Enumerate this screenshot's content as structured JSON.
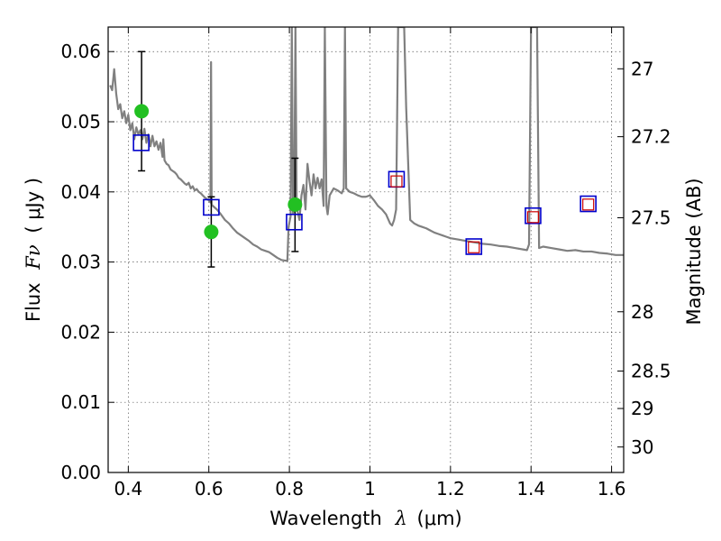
{
  "chart_data": {
    "type": "scatter",
    "xlabel_text": "Wavelength",
    "xlabel_symbol": "λ",
    "xlabel_unit": "(μm)",
    "ylabel_text": "Flux",
    "ylabel_symbol": "Fν",
    "ylabel_unit": "( μJy )",
    "y2label": "Magnitude (AB)",
    "xlim": [
      0.35,
      1.63
    ],
    "ylim": [
      0.0,
      0.0635
    ],
    "grid": true,
    "x_ticks": [
      0.4,
      0.6,
      0.8,
      1.0,
      1.2,
      1.4,
      1.6
    ],
    "x_tick_labels": [
      "0.4",
      "0.6",
      "0.8",
      "1",
      "1.2",
      "1.4",
      "1.6"
    ],
    "y_ticks": [
      0.0,
      0.01,
      0.02,
      0.03,
      0.04,
      0.05,
      0.06
    ],
    "y_tick_labels": [
      "0.00",
      "0.01",
      "0.02",
      "0.03",
      "0.04",
      "0.05",
      "0.06"
    ],
    "y2_ticks": [
      27,
      27.2,
      27.5,
      28,
      28.5,
      29,
      30
    ],
    "y2_tick_labels": [
      "27",
      "27.2",
      "27.5",
      "28",
      "28.5",
      "29",
      "30"
    ],
    "model_spectrum": {
      "color": "#808080",
      "points": [
        [
          0.355,
          0.0552
        ],
        [
          0.36,
          0.0545
        ],
        [
          0.365,
          0.0575
        ],
        [
          0.37,
          0.054
        ],
        [
          0.375,
          0.0518
        ],
        [
          0.38,
          0.0525
        ],
        [
          0.385,
          0.0505
        ],
        [
          0.39,
          0.0515
        ],
        [
          0.395,
          0.0498
        ],
        [
          0.4,
          0.051
        ],
        [
          0.405,
          0.0488
        ],
        [
          0.41,
          0.0498
        ],
        [
          0.415,
          0.0475
        ],
        [
          0.42,
          0.0492
        ],
        [
          0.425,
          0.0482
        ],
        [
          0.43,
          0.0488
        ],
        [
          0.435,
          0.0475
        ],
        [
          0.44,
          0.049
        ],
        [
          0.445,
          0.047
        ],
        [
          0.45,
          0.0482
        ],
        [
          0.455,
          0.0465
        ],
        [
          0.46,
          0.048
        ],
        [
          0.465,
          0.0465
        ],
        [
          0.47,
          0.0472
        ],
        [
          0.475,
          0.046
        ],
        [
          0.48,
          0.047
        ],
        [
          0.485,
          0.045
        ],
        [
          0.487,
          0.0475
        ],
        [
          0.49,
          0.0445
        ],
        [
          0.495,
          0.044
        ],
        [
          0.5,
          0.0438
        ],
        [
          0.505,
          0.0432
        ],
        [
          0.51,
          0.043
        ],
        [
          0.515,
          0.0428
        ],
        [
          0.52,
          0.0425
        ],
        [
          0.525,
          0.042
        ],
        [
          0.53,
          0.0418
        ],
        [
          0.535,
          0.0415
        ],
        [
          0.54,
          0.0412
        ],
        [
          0.545,
          0.041
        ],
        [
          0.55,
          0.0413
        ],
        [
          0.555,
          0.0405
        ],
        [
          0.56,
          0.0408
        ],
        [
          0.565,
          0.0402
        ],
        [
          0.57,
          0.0404
        ],
        [
          0.575,
          0.04
        ],
        [
          0.58,
          0.0398
        ],
        [
          0.585,
          0.0395
        ],
        [
          0.59,
          0.0392
        ],
        [
          0.595,
          0.039
        ],
        [
          0.6,
          0.0388
        ],
        [
          0.604,
          0.0385
        ],
        [
          0.6055,
          0.0585
        ],
        [
          0.607,
          0.0382
        ],
        [
          0.61,
          0.038
        ],
        [
          0.62,
          0.0375
        ],
        [
          0.63,
          0.0368
        ],
        [
          0.64,
          0.036
        ],
        [
          0.65,
          0.0355
        ],
        [
          0.66,
          0.0348
        ],
        [
          0.67,
          0.0342
        ],
        [
          0.68,
          0.0338
        ],
        [
          0.69,
          0.0334
        ],
        [
          0.7,
          0.033
        ],
        [
          0.71,
          0.0325
        ],
        [
          0.72,
          0.0322
        ],
        [
          0.73,
          0.0318
        ],
        [
          0.74,
          0.0316
        ],
        [
          0.75,
          0.0314
        ],
        [
          0.76,
          0.031
        ],
        [
          0.77,
          0.0306
        ],
        [
          0.78,
          0.0303
        ],
        [
          0.79,
          0.0302
        ],
        [
          0.795,
          0.0302
        ],
        [
          0.798,
          0.035
        ],
        [
          0.803,
          0.0365
        ],
        [
          0.806,
          0.0635
        ],
        [
          0.809,
          0.037
        ],
        [
          0.812,
          0.0375
        ],
        [
          0.815,
          0.0635
        ],
        [
          0.818,
          0.0378
        ],
        [
          0.825,
          0.036
        ],
        [
          0.83,
          0.0395
        ],
        [
          0.835,
          0.041
        ],
        [
          0.84,
          0.0375
        ],
        [
          0.845,
          0.044
        ],
        [
          0.85,
          0.0415
        ],
        [
          0.855,
          0.0395
        ],
        [
          0.86,
          0.0425
        ],
        [
          0.865,
          0.0405
        ],
        [
          0.87,
          0.042
        ],
        [
          0.875,
          0.0405
        ],
        [
          0.88,
          0.0418
        ],
        [
          0.885,
          0.038
        ],
        [
          0.888,
          0.0635
        ],
        [
          0.892,
          0.038
        ],
        [
          0.895,
          0.0368
        ],
        [
          0.9,
          0.0395
        ],
        [
          0.91,
          0.0405
        ],
        [
          0.92,
          0.0402
        ],
        [
          0.93,
          0.0398
        ],
        [
          0.935,
          0.0405
        ],
        [
          0.938,
          0.0635
        ],
        [
          0.941,
          0.0405
        ],
        [
          0.95,
          0.04
        ],
        [
          0.96,
          0.0398
        ],
        [
          0.97,
          0.0395
        ],
        [
          0.98,
          0.0393
        ],
        [
          0.99,
          0.0393
        ],
        [
          1.0,
          0.0395
        ],
        [
          1.01,
          0.0388
        ],
        [
          1.02,
          0.038
        ],
        [
          1.03,
          0.0375
        ],
        [
          1.04,
          0.0368
        ],
        [
          1.05,
          0.0355
        ],
        [
          1.055,
          0.0352
        ],
        [
          1.06,
          0.036
        ],
        [
          1.065,
          0.0375
        ],
        [
          1.07,
          0.0635
        ],
        [
          1.085,
          0.0635
        ],
        [
          1.09,
          0.052
        ],
        [
          1.1,
          0.036
        ],
        [
          1.11,
          0.0355
        ],
        [
          1.12,
          0.0352
        ],
        [
          1.13,
          0.035
        ],
        [
          1.14,
          0.0348
        ],
        [
          1.15,
          0.0345
        ],
        [
          1.16,
          0.0342
        ],
        [
          1.17,
          0.034
        ],
        [
          1.18,
          0.0338
        ],
        [
          1.19,
          0.0336
        ],
        [
          1.2,
          0.0334
        ],
        [
          1.22,
          0.0332
        ],
        [
          1.24,
          0.033
        ],
        [
          1.26,
          0.0328
        ],
        [
          1.28,
          0.0326
        ],
        [
          1.3,
          0.0325
        ],
        [
          1.32,
          0.0323
        ],
        [
          1.34,
          0.0322
        ],
        [
          1.36,
          0.032
        ],
        [
          1.38,
          0.0318
        ],
        [
          1.39,
          0.0317
        ],
        [
          1.395,
          0.0325
        ],
        [
          1.4,
          0.0635
        ],
        [
          1.415,
          0.0635
        ],
        [
          1.42,
          0.032
        ],
        [
          1.43,
          0.0322
        ],
        [
          1.45,
          0.032
        ],
        [
          1.47,
          0.0318
        ],
        [
          1.49,
          0.0316
        ],
        [
          1.51,
          0.0317
        ],
        [
          1.53,
          0.0315
        ],
        [
          1.55,
          0.0315
        ],
        [
          1.57,
          0.0313
        ],
        [
          1.59,
          0.0312
        ],
        [
          1.61,
          0.031
        ],
        [
          1.63,
          0.031
        ]
      ]
    },
    "observed": {
      "color": "#22c022",
      "points": [
        {
          "x": 0.433,
          "y": 0.0515,
          "err_low": 0.043,
          "err_high": 0.06
        },
        {
          "x": 0.606,
          "y": 0.0343,
          "err_low": 0.0293,
          "err_high": 0.0393
        },
        {
          "x": 0.814,
          "y": 0.0382,
          "err_low": 0.0315,
          "err_high": 0.0448
        }
      ]
    },
    "model_blue_squares": {
      "color": "#0000cc",
      "points": [
        [
          0.432,
          0.047
        ],
        [
          0.606,
          0.0378
        ],
        [
          0.812,
          0.0357
        ],
        [
          1.066,
          0.0418
        ],
        [
          1.258,
          0.0322
        ],
        [
          1.405,
          0.0366
        ],
        [
          1.542,
          0.0383
        ]
      ]
    },
    "model_red_squares": {
      "color": "#cc0000",
      "points": [
        [
          1.066,
          0.0415
        ],
        [
          1.258,
          0.0321
        ],
        [
          1.405,
          0.0364
        ],
        [
          1.542,
          0.0382
        ]
      ]
    },
    "errorbar_color": "#000000"
  }
}
